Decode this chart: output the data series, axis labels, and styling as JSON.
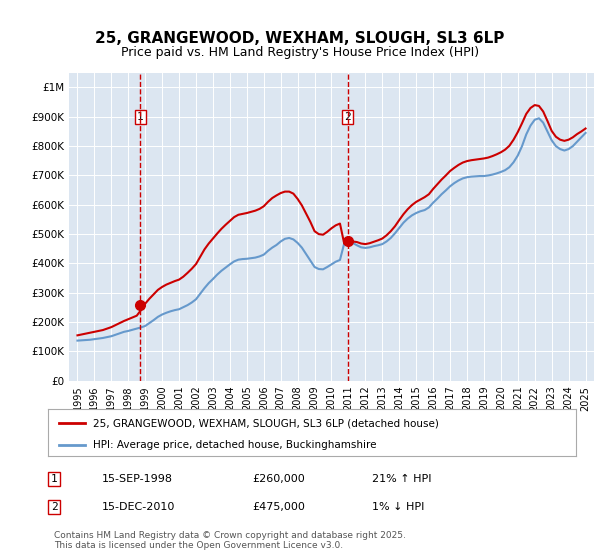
{
  "title": "25, GRANGEWOOD, WEXHAM, SLOUGH, SL3 6LP",
  "subtitle": "Price paid vs. HM Land Registry's House Price Index (HPI)",
  "legend_line1": "25, GRANGEWOOD, WEXHAM, SLOUGH, SL3 6LP (detached house)",
  "legend_line2": "HPI: Average price, detached house, Buckinghamshire",
  "footer": "Contains HM Land Registry data © Crown copyright and database right 2025.\nThis data is licensed under the Open Government Licence v3.0.",
  "sale1_label": "1",
  "sale1_date": "15-SEP-1998",
  "sale1_price": "£260,000",
  "sale1_hpi": "21% ↑ HPI",
  "sale2_label": "2",
  "sale2_date": "15-DEC-2010",
  "sale2_price": "£475,000",
  "sale2_hpi": "1% ↓ HPI",
  "property_color": "#cc0000",
  "hpi_color": "#6699cc",
  "background_color": "#dce6f1",
  "plot_bg_color": "#dce6f1",
  "sale1_x": 1998.71,
  "sale1_y": 260000,
  "sale2_x": 2010.96,
  "sale2_y": 475000,
  "vline1_x": 1998.71,
  "vline2_x": 2010.96,
  "ylim": [
    0,
    1050000
  ],
  "xlim_left": 1994.5,
  "xlim_right": 2025.5,
  "yticks": [
    0,
    100000,
    200000,
    300000,
    400000,
    500000,
    600000,
    700000,
    800000,
    900000,
    1000000
  ],
  "ytick_labels": [
    "£0",
    "£100K",
    "£200K",
    "£300K",
    "£400K",
    "£500K",
    "£600K",
    "£700K",
    "£800K",
    "£900K",
    "£1M"
  ],
  "xticks": [
    1995,
    1996,
    1997,
    1998,
    1999,
    2000,
    2001,
    2002,
    2003,
    2004,
    2005,
    2006,
    2007,
    2008,
    2009,
    2010,
    2011,
    2012,
    2013,
    2014,
    2015,
    2016,
    2017,
    2018,
    2019,
    2020,
    2021,
    2022,
    2023,
    2024,
    2025
  ],
  "hpi_years": [
    1995.0,
    1995.25,
    1995.5,
    1995.75,
    1996.0,
    1996.25,
    1996.5,
    1996.75,
    1997.0,
    1997.25,
    1997.5,
    1997.75,
    1998.0,
    1998.25,
    1998.5,
    1998.75,
    1999.0,
    1999.25,
    1999.5,
    1999.75,
    2000.0,
    2000.25,
    2000.5,
    2000.75,
    2001.0,
    2001.25,
    2001.5,
    2001.75,
    2002.0,
    2002.25,
    2002.5,
    2002.75,
    2003.0,
    2003.25,
    2003.5,
    2003.75,
    2004.0,
    2004.25,
    2004.5,
    2004.75,
    2005.0,
    2005.25,
    2005.5,
    2005.75,
    2006.0,
    2006.25,
    2006.5,
    2006.75,
    2007.0,
    2007.25,
    2007.5,
    2007.75,
    2008.0,
    2008.25,
    2008.5,
    2008.75,
    2009.0,
    2009.25,
    2009.5,
    2009.75,
    2010.0,
    2010.25,
    2010.5,
    2010.75,
    2011.0,
    2011.25,
    2011.5,
    2011.75,
    2012.0,
    2012.25,
    2012.5,
    2012.75,
    2013.0,
    2013.25,
    2013.5,
    2013.75,
    2014.0,
    2014.25,
    2014.5,
    2014.75,
    2015.0,
    2015.25,
    2015.5,
    2015.75,
    2016.0,
    2016.25,
    2016.5,
    2016.75,
    2017.0,
    2017.25,
    2017.5,
    2017.75,
    2018.0,
    2018.25,
    2018.5,
    2018.75,
    2019.0,
    2019.25,
    2019.5,
    2019.75,
    2020.0,
    2020.25,
    2020.5,
    2020.75,
    2021.0,
    2021.25,
    2021.5,
    2021.75,
    2022.0,
    2022.25,
    2022.5,
    2022.75,
    2023.0,
    2023.25,
    2023.5,
    2023.75,
    2024.0,
    2024.25,
    2024.5,
    2024.75,
    2025.0
  ],
  "hpi_values": [
    137000,
    138000,
    139000,
    140000,
    142000,
    144000,
    146000,
    149000,
    152000,
    157000,
    162000,
    167000,
    170000,
    174000,
    178000,
    182000,
    187000,
    197000,
    207000,
    218000,
    226000,
    232000,
    237000,
    241000,
    244000,
    251000,
    258000,
    267000,
    278000,
    297000,
    316000,
    333000,
    347000,
    362000,
    375000,
    386000,
    397000,
    407000,
    413000,
    415000,
    416000,
    418000,
    420000,
    424000,
    430000,
    443000,
    454000,
    463000,
    475000,
    484000,
    487000,
    482000,
    470000,
    454000,
    432000,
    410000,
    388000,
    381000,
    380000,
    388000,
    397000,
    406000,
    412000,
    468000,
    474000,
    470000,
    462000,
    455000,
    453000,
    455000,
    459000,
    462000,
    466000,
    475000,
    487000,
    503000,
    521000,
    539000,
    553000,
    564000,
    572000,
    578000,
    582000,
    591000,
    607000,
    621000,
    636000,
    649000,
    663000,
    674000,
    683000,
    690000,
    694000,
    696000,
    697000,
    698000,
    698000,
    700000,
    703000,
    707000,
    712000,
    718000,
    728000,
    745000,
    768000,
    800000,
    840000,
    870000,
    890000,
    895000,
    880000,
    850000,
    820000,
    800000,
    790000,
    785000,
    790000,
    800000,
    815000,
    830000,
    845000
  ],
  "prop_years": [
    1995.0,
    1995.25,
    1995.5,
    1995.75,
    1996.0,
    1996.25,
    1996.5,
    1996.75,
    1997.0,
    1997.25,
    1997.5,
    1997.75,
    1998.0,
    1998.25,
    1998.5,
    1998.75,
    1999.0,
    1999.25,
    1999.5,
    1999.75,
    2000.0,
    2000.25,
    2000.5,
    2000.75,
    2001.0,
    2001.25,
    2001.5,
    2001.75,
    2002.0,
    2002.25,
    2002.5,
    2002.75,
    2003.0,
    2003.25,
    2003.5,
    2003.75,
    2004.0,
    2004.25,
    2004.5,
    2004.75,
    2005.0,
    2005.25,
    2005.5,
    2005.75,
    2006.0,
    2006.25,
    2006.5,
    2006.75,
    2007.0,
    2007.25,
    2007.5,
    2007.75,
    2008.0,
    2008.25,
    2008.5,
    2008.75,
    2009.0,
    2009.25,
    2009.5,
    2009.75,
    2010.0,
    2010.25,
    2010.5,
    2010.75,
    2011.0,
    2011.25,
    2011.5,
    2011.75,
    2012.0,
    2012.25,
    2012.5,
    2012.75,
    2013.0,
    2013.25,
    2013.5,
    2013.75,
    2014.0,
    2014.25,
    2014.5,
    2014.75,
    2015.0,
    2015.25,
    2015.5,
    2015.75,
    2016.0,
    2016.25,
    2016.5,
    2016.75,
    2017.0,
    2017.25,
    2017.5,
    2017.75,
    2018.0,
    2018.25,
    2018.5,
    2018.75,
    2019.0,
    2019.25,
    2019.5,
    2019.75,
    2020.0,
    2020.25,
    2020.5,
    2020.75,
    2021.0,
    2021.25,
    2021.5,
    2021.75,
    2022.0,
    2022.25,
    2022.5,
    2022.75,
    2023.0,
    2023.25,
    2023.5,
    2023.75,
    2024.0,
    2024.25,
    2024.5,
    2024.75,
    2025.0
  ],
  "prop_values": [
    155000,
    158000,
    161000,
    164000,
    167000,
    170000,
    173000,
    178000,
    183000,
    190000,
    197000,
    204000,
    210000,
    216000,
    222000,
    241000,
    263000,
    280000,
    295000,
    310000,
    320000,
    328000,
    334000,
    340000,
    345000,
    355000,
    368000,
    382000,
    398000,
    423000,
    448000,
    468000,
    485000,
    502000,
    518000,
    532000,
    545000,
    558000,
    566000,
    569000,
    572000,
    576000,
    580000,
    586000,
    595000,
    610000,
    623000,
    632000,
    640000,
    645000,
    645000,
    638000,
    620000,
    598000,
    570000,
    542000,
    510000,
    500000,
    498000,
    508000,
    520000,
    530000,
    536000,
    468000,
    473000,
    475000,
    473000,
    468000,
    466000,
    469000,
    474000,
    479000,
    485000,
    496000,
    510000,
    527000,
    548000,
    568000,
    585000,
    599000,
    610000,
    618000,
    626000,
    636000,
    654000,
    670000,
    686000,
    700000,
    715000,
    726000,
    736000,
    744000,
    749000,
    752000,
    754000,
    756000,
    758000,
    761000,
    766000,
    772000,
    779000,
    788000,
    801000,
    822000,
    848000,
    878000,
    910000,
    930000,
    940000,
    937000,
    918000,
    886000,
    852000,
    832000,
    822000,
    818000,
    822000,
    830000,
    841000,
    850000,
    860000
  ]
}
